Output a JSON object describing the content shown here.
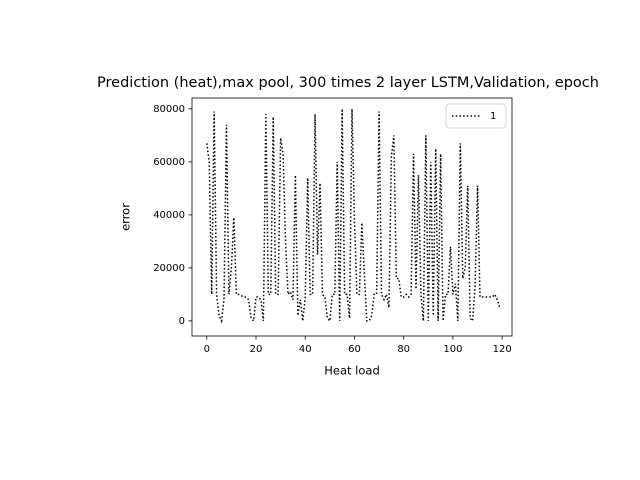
{
  "chart_data": {
    "type": "line",
    "title": "Prediction (heat),max pool, 300 times 2 layer LSTM,Validation, epoch",
    "xlabel": "Heat load",
    "ylabel": "error",
    "x": [
      0,
      1,
      2,
      3,
      4,
      5,
      6,
      7,
      8,
      9,
      10,
      11,
      12,
      13,
      14,
      15,
      16,
      17,
      18,
      19,
      20,
      21,
      22,
      23,
      24,
      25,
      26,
      27,
      28,
      29,
      30,
      31,
      32,
      33,
      34,
      35,
      36,
      37,
      38,
      39,
      40,
      41,
      42,
      43,
      44,
      45,
      46,
      47,
      48,
      49,
      50,
      51,
      52,
      53,
      54,
      55,
      56,
      57,
      58,
      59,
      60,
      61,
      62,
      63,
      64,
      65,
      66,
      67,
      68,
      69,
      70,
      71,
      72,
      73,
      74,
      75,
      76,
      77,
      78,
      79,
      80,
      81,
      82,
      83,
      84,
      85,
      86,
      87,
      88,
      89,
      90,
      91,
      92,
      93,
      94,
      95,
      96,
      97,
      98,
      99,
      100,
      101,
      102,
      103,
      104,
      105,
      106,
      107,
      108,
      109,
      110,
      111,
      112,
      113,
      114,
      115,
      116,
      117,
      118,
      119
    ],
    "series": [
      {
        "name": "1",
        "color": "#000000",
        "linestyle": "dotted",
        "values": [
          67000,
          60000,
          10000,
          79000,
          10000,
          2000,
          0,
          8000,
          74000,
          10000,
          20000,
          39000,
          10000,
          10000,
          9500,
          9000,
          9000,
          8000,
          1000,
          0,
          9000,
          9000,
          8000,
          0,
          78000,
          10000,
          10000,
          77000,
          10000,
          10000,
          69000,
          63000,
          30000,
          10000,
          11000,
          8000,
          55000,
          2000,
          8000,
          0,
          9000,
          54000,
          10000,
          10000,
          78000,
          25000,
          52000,
          10000,
          9000,
          1000,
          0,
          10000,
          10000,
          60000,
          0,
          80000,
          10000,
          10000,
          1000,
          80000,
          38000,
          10000,
          10000,
          37000,
          18000,
          0,
          0,
          2000,
          10000,
          10000,
          79000,
          10000,
          8000,
          10000,
          5000,
          62000,
          70000,
          16000,
          16000,
          9000,
          9000,
          10000,
          9000,
          10000,
          63000,
          12000,
          55000,
          10000,
          0,
          70000,
          0,
          60000,
          2000,
          65000,
          0,
          63000,
          0,
          10000,
          10000,
          28000,
          10000,
          14000,
          0,
          67000,
          16000,
          20000,
          51000,
          1000,
          0,
          13000,
          51000,
          9000,
          9000,
          9000,
          9000,
          9000,
          9000,
          10000,
          8000,
          5000
        ]
      }
    ],
    "xlim": [
      -6,
      124
    ],
    "ylim": [
      -5700,
      84100
    ],
    "xticks": [
      0,
      20,
      40,
      60,
      80,
      100,
      120
    ],
    "yticks": [
      0,
      20000,
      40000,
      60000,
      80000
    ],
    "legend": "upper right"
  }
}
